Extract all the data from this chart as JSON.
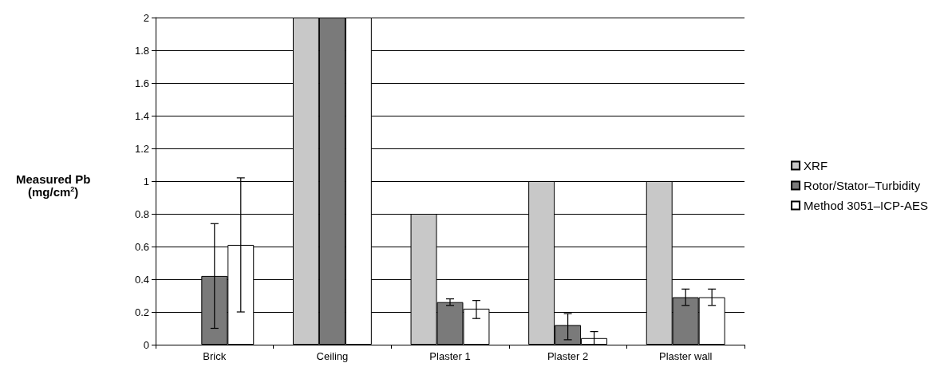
{
  "chart_data": {
    "type": "bar",
    "ylabel": "Measured Pb\n(mg/cm$^{2}$)",
    "categories": [
      "Brick",
      "Ceiling",
      "Plaster 1",
      "Plaster 2",
      "Plaster wall"
    ],
    "series": [
      {
        "name": "XRF",
        "color": "#c8c8c8",
        "values": [
          null,
          2,
          0.8,
          1.0,
          1.0
        ]
      },
      {
        "name": "Rotor/Stator–Turbidity",
        "color": "#7a7a7a",
        "values": [
          0.42,
          2,
          0.26,
          0.12,
          0.29
        ],
        "errors": [
          [
            0.1,
            0.74
          ],
          null,
          [
            0.24,
            0.28
          ],
          [
            0.03,
            0.19
          ],
          [
            0.24,
            0.34
          ]
        ]
      },
      {
        "name": "Method 3051–ICP-AES",
        "color": "#ffffff",
        "values": [
          0.61,
          2,
          0.22,
          0.04,
          0.29
        ],
        "errors": [
          [
            0.2,
            1.02
          ],
          null,
          [
            0.16,
            0.27
          ],
          [
            0.0,
            0.08
          ],
          [
            0.24,
            0.34
          ]
        ]
      }
    ],
    "ylim": [
      0,
      2
    ],
    "yticks": [
      0,
      0.2,
      0.4,
      0.6,
      0.8,
      1,
      1.2,
      1.4,
      1.6,
      1.8,
      2
    ],
    "grid": "y",
    "legend": "right"
  }
}
